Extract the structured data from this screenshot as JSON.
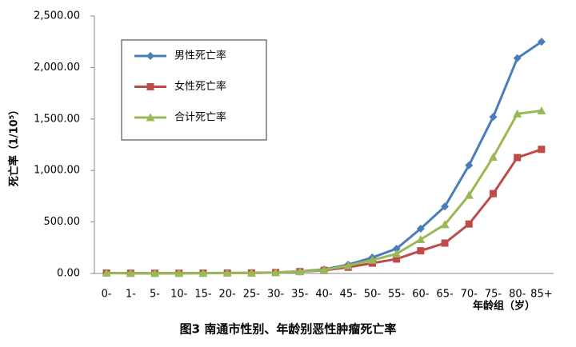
{
  "chart_data": {
    "type": "line",
    "title": "图3 南通市性别、年龄别恶性肿瘤死亡率",
    "y_label": "死亡率（1/10⁵）",
    "x_label": "年龄组（岁）",
    "categories": [
      "0-",
      "1-",
      "5-",
      "10-",
      "15-",
      "20-",
      "25-",
      "30-",
      "35-",
      "40-",
      "45-",
      "50-",
      "55-",
      "60-",
      "65-",
      "70-",
      "75-",
      "80-",
      "85+"
    ],
    "series": [
      {
        "name": "男性死亡率",
        "color": "#4a7ebb",
        "marker": "diamond",
        "values": [
          5,
          3,
          3,
          3,
          4,
          5,
          6,
          10,
          20,
          40,
          85,
          155,
          240,
          435,
          650,
          1050,
          1520,
          2090,
          2250
        ]
      },
      {
        "name": "女性死亡率",
        "color": "#be4b48",
        "marker": "square",
        "values": [
          4,
          2,
          2,
          2,
          3,
          4,
          5,
          9,
          18,
          30,
          60,
          100,
          140,
          220,
          295,
          480,
          775,
          1125,
          1205
        ]
      },
      {
        "name": "合计死亡率",
        "color": "#98b954",
        "marker": "triangle",
        "values": [
          4,
          3,
          3,
          3,
          3,
          4,
          5,
          9,
          19,
          35,
          75,
          130,
          190,
          330,
          475,
          760,
          1130,
          1550,
          1580
        ]
      }
    ],
    "ylim": [
      0,
      2500
    ],
    "yticks": [
      {
        "value": 0,
        "label": "0.00"
      },
      {
        "value": 500,
        "label": "500.00"
      },
      {
        "value": 1000,
        "label": "1,000.00"
      },
      {
        "value": 1500,
        "label": "1,500.00"
      },
      {
        "value": 2000,
        "label": "2,000.00"
      },
      {
        "value": 2500,
        "label": "2,500.00"
      }
    ],
    "grid": false,
    "legend": "upper left"
  }
}
